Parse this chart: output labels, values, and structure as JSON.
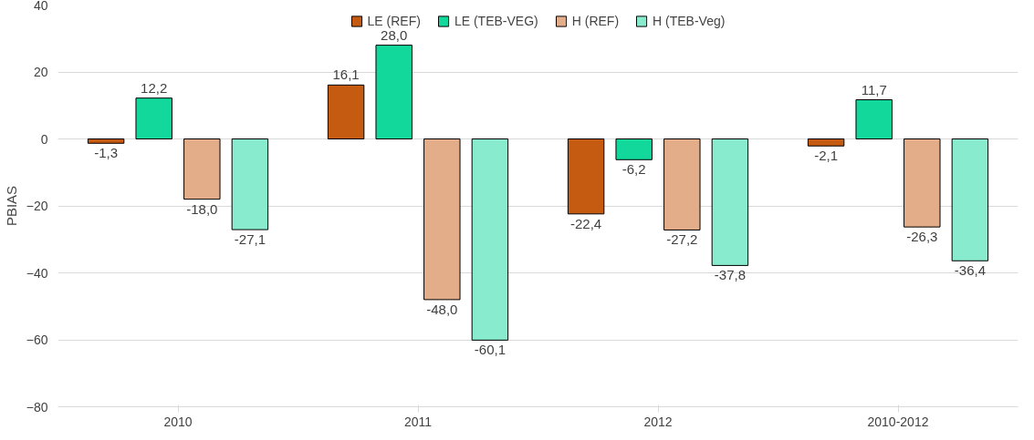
{
  "chart_data": {
    "type": "bar",
    "ylabel": "PBIAS",
    "categories": [
      "2010",
      "2011",
      "2012",
      "2010-2012"
    ],
    "series": [
      {
        "name": "LE (REF)",
        "color": "#c55a11",
        "values": [
          -1.3,
          16.1,
          -22.4,
          -2.1
        ],
        "value_labels": [
          "-1,3",
          "16,1",
          "-22,4",
          "-2,1"
        ]
      },
      {
        "name": "LE (TEB-VEG)",
        "color": "#13d89c",
        "values": [
          12.2,
          28.0,
          -6.2,
          11.7
        ],
        "value_labels": [
          "12,2",
          "28,0",
          "-6,2",
          "11,7"
        ]
      },
      {
        "name": "H (REF)",
        "color": "#e2ad88",
        "values": [
          -18.0,
          -48.0,
          -27.2,
          -26.3
        ],
        "value_labels": [
          "-18,0",
          "-48,0",
          "-27,2",
          "-26,3"
        ]
      },
      {
        "name": "H (TEB-Veg)",
        "color": "#89ebcd",
        "values": [
          -27.1,
          -60.1,
          -37.8,
          -36.4
        ],
        "value_labels": [
          "-27,1",
          "-60,1",
          "-37,8",
          "-36,4"
        ]
      }
    ],
    "ylim": [
      -80,
      40
    ],
    "yticks": [
      -80,
      -60,
      -40,
      -20,
      0,
      20,
      40
    ],
    "grid": "y",
    "legend": "top"
  }
}
